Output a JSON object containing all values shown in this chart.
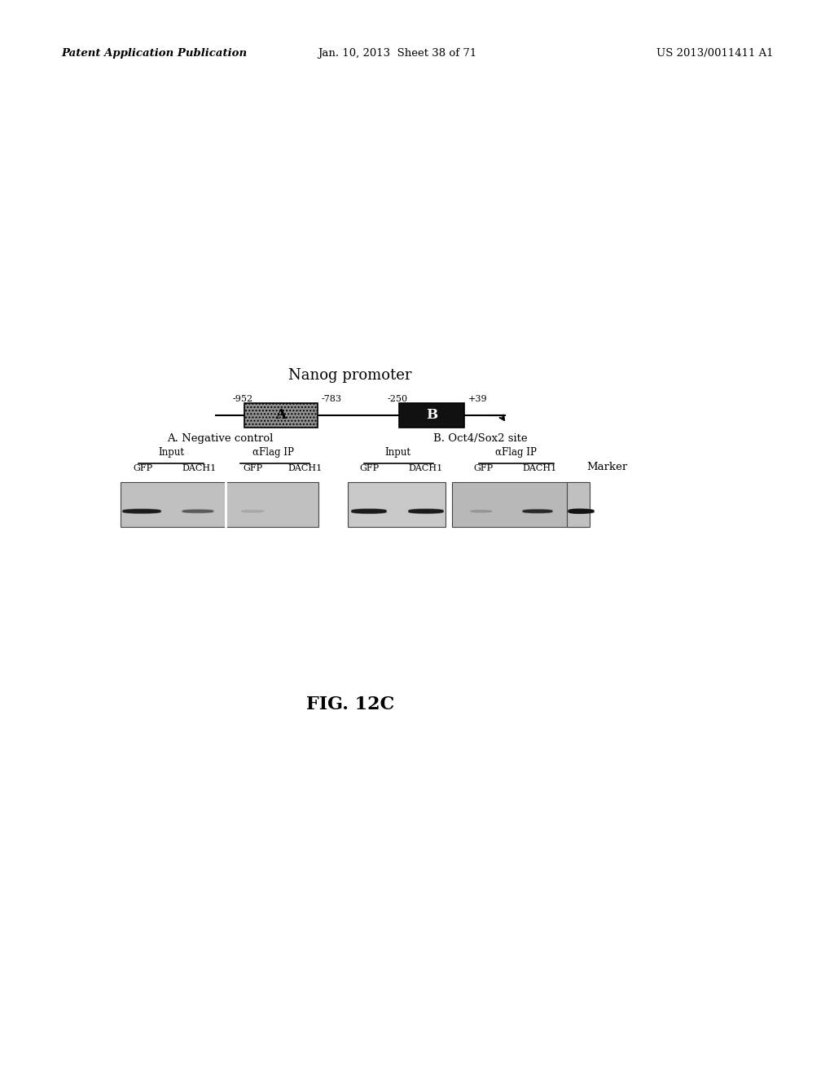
{
  "page_header_left": "Patent Application Publication",
  "page_header_mid": "Jan. 10, 2013  Sheet 38 of 71",
  "page_header_right": "US 2013/0011411 A1",
  "fig_label": "FIG. 12C",
  "nanog_title": "Nanog promoter",
  "pos_labels": [
    "-952",
    "A",
    "-783",
    "-250",
    "B",
    "+39"
  ],
  "box_A_label": "A",
  "box_B_label": "B",
  "section_A_title": "A. Negative control",
  "section_B_title": "B. Oct4/Sox2 site",
  "input_label": "Input",
  "alpha_flag_label": "αFlag IP",
  "col_labels": [
    "GFP",
    "DACH1",
    "GFP",
    "DACH1"
  ],
  "marker_label": "Marker",
  "bg_color": "#ffffff"
}
